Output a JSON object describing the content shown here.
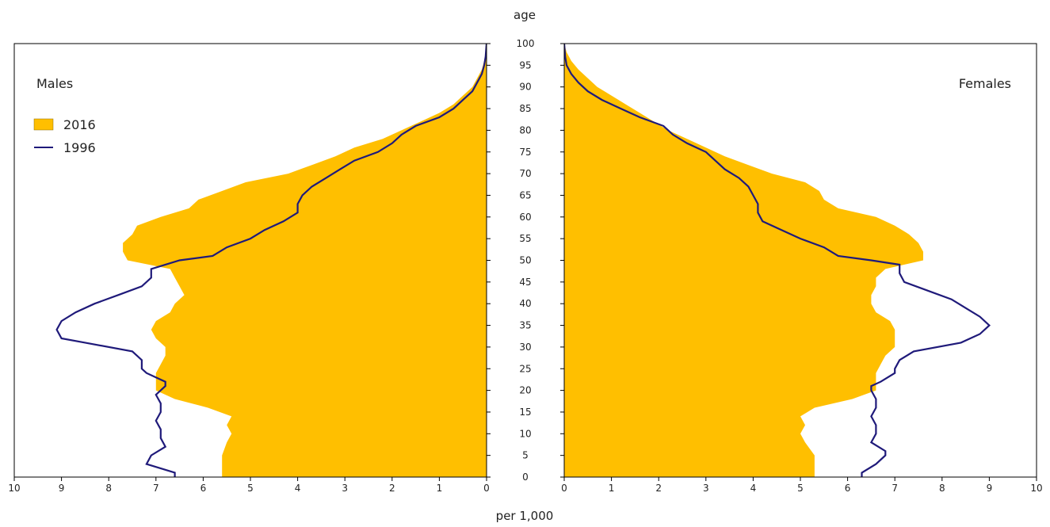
{
  "chart_data": {
    "type": "population-pyramid",
    "y_axis_title": "age",
    "x_axis_title": "per 1,000",
    "panels": [
      {
        "name": "Males",
        "side": "left"
      },
      {
        "name": "Females",
        "side": "right"
      }
    ],
    "x_range": [
      0,
      10
    ],
    "x_ticks": [
      "0",
      "1",
      "2",
      "3",
      "4",
      "5",
      "6",
      "7",
      "8",
      "9",
      "10"
    ],
    "y_range": [
      0,
      100
    ],
    "y_ticks": [
      "0",
      "5",
      "10",
      "15",
      "20",
      "25",
      "30",
      "35",
      "40",
      "45",
      "50",
      "55",
      "60",
      "65",
      "70",
      "75",
      "80",
      "85",
      "90",
      "95",
      "100"
    ],
    "legend": {
      "placement": "top-left",
      "entries": [
        {
          "label": "2016",
          "kind": "area",
          "color": "#FFBF00"
        },
        {
          "label": "1996",
          "kind": "line",
          "color": "#1F1A7A"
        }
      ]
    },
    "series": [
      {
        "name": "2016",
        "kind": "area",
        "color": "#FFBF00",
        "males": [
          [
            0,
            5.6
          ],
          [
            2,
            5.6
          ],
          [
            5,
            5.6
          ],
          [
            8,
            5.5
          ],
          [
            10,
            5.4
          ],
          [
            12,
            5.5
          ],
          [
            14,
            5.4
          ],
          [
            16,
            5.9
          ],
          [
            18,
            6.6
          ],
          [
            20,
            7.0
          ],
          [
            22,
            7.0
          ],
          [
            24,
            7.0
          ],
          [
            26,
            6.9
          ],
          [
            28,
            6.8
          ],
          [
            30,
            6.8
          ],
          [
            32,
            7.0
          ],
          [
            34,
            7.1
          ],
          [
            36,
            7.0
          ],
          [
            38,
            6.7
          ],
          [
            40,
            6.6
          ],
          [
            42,
            6.4
          ],
          [
            44,
            6.5
          ],
          [
            46,
            6.6
          ],
          [
            48,
            6.7
          ],
          [
            50,
            7.6
          ],
          [
            52,
            7.7
          ],
          [
            54,
            7.7
          ],
          [
            56,
            7.5
          ],
          [
            58,
            7.4
          ],
          [
            60,
            6.9
          ],
          [
            62,
            6.3
          ],
          [
            64,
            6.1
          ],
          [
            66,
            5.6
          ],
          [
            68,
            5.1
          ],
          [
            70,
            4.2
          ],
          [
            72,
            3.7
          ],
          [
            74,
            3.2
          ],
          [
            76,
            2.8
          ],
          [
            78,
            2.2
          ],
          [
            80,
            1.8
          ],
          [
            82,
            1.4
          ],
          [
            84,
            1.0
          ],
          [
            86,
            0.7
          ],
          [
            88,
            0.5
          ],
          [
            90,
            0.3
          ],
          [
            92,
            0.2
          ],
          [
            94,
            0.1
          ],
          [
            96,
            0.05
          ],
          [
            98,
            0.02
          ],
          [
            100,
            0.0
          ]
        ],
        "females": [
          [
            0,
            5.3
          ],
          [
            2,
            5.3
          ],
          [
            5,
            5.3
          ],
          [
            8,
            5.1
          ],
          [
            10,
            5.0
          ],
          [
            12,
            5.1
          ],
          [
            14,
            5.0
          ],
          [
            16,
            5.3
          ],
          [
            18,
            6.1
          ],
          [
            20,
            6.6
          ],
          [
            22,
            6.6
          ],
          [
            24,
            6.6
          ],
          [
            26,
            6.7
          ],
          [
            28,
            6.8
          ],
          [
            30,
            7.0
          ],
          [
            32,
            7.0
          ],
          [
            34,
            7.0
          ],
          [
            36,
            6.9
          ],
          [
            38,
            6.6
          ],
          [
            40,
            6.5
          ],
          [
            42,
            6.5
          ],
          [
            44,
            6.6
          ],
          [
            46,
            6.6
          ],
          [
            48,
            6.8
          ],
          [
            50,
            7.6
          ],
          [
            52,
            7.6
          ],
          [
            54,
            7.5
          ],
          [
            56,
            7.3
          ],
          [
            58,
            7.0
          ],
          [
            60,
            6.6
          ],
          [
            62,
            5.8
          ],
          [
            64,
            5.5
          ],
          [
            66,
            5.4
          ],
          [
            68,
            5.1
          ],
          [
            70,
            4.4
          ],
          [
            72,
            3.9
          ],
          [
            74,
            3.4
          ],
          [
            76,
            3.0
          ],
          [
            78,
            2.6
          ],
          [
            80,
            2.2
          ],
          [
            82,
            1.9
          ],
          [
            84,
            1.6
          ],
          [
            86,
            1.3
          ],
          [
            88,
            1.0
          ],
          [
            90,
            0.7
          ],
          [
            92,
            0.5
          ],
          [
            94,
            0.3
          ],
          [
            96,
            0.15
          ],
          [
            98,
            0.05
          ],
          [
            100,
            0.0
          ]
        ]
      },
      {
        "name": "1996",
        "kind": "line",
        "color": "#1F1A7A",
        "males": [
          [
            0,
            6.6
          ],
          [
            1,
            6.6
          ],
          [
            3,
            7.2
          ],
          [
            5,
            7.1
          ],
          [
            7,
            6.8
          ],
          [
            9,
            6.9
          ],
          [
            11,
            6.9
          ],
          [
            13,
            7.0
          ],
          [
            15,
            6.9
          ],
          [
            17,
            6.9
          ],
          [
            19,
            7.0
          ],
          [
            20,
            6.9
          ],
          [
            21,
            6.8
          ],
          [
            22,
            6.8
          ],
          [
            23,
            7.0
          ],
          [
            24,
            7.2
          ],
          [
            25,
            7.3
          ],
          [
            27,
            7.3
          ],
          [
            29,
            7.5
          ],
          [
            31,
            8.5
          ],
          [
            32,
            9.0
          ],
          [
            34,
            9.1
          ],
          [
            36,
            9.0
          ],
          [
            38,
            8.7
          ],
          [
            40,
            8.3
          ],
          [
            42,
            7.8
          ],
          [
            44,
            7.3
          ],
          [
            46,
            7.1
          ],
          [
            48,
            7.1
          ],
          [
            50,
            6.5
          ],
          [
            51,
            5.8
          ],
          [
            53,
            5.5
          ],
          [
            55,
            5.0
          ],
          [
            57,
            4.7
          ],
          [
            59,
            4.3
          ],
          [
            61,
            4.0
          ],
          [
            63,
            4.0
          ],
          [
            65,
            3.9
          ],
          [
            67,
            3.7
          ],
          [
            69,
            3.4
          ],
          [
            71,
            3.1
          ],
          [
            73,
            2.8
          ],
          [
            75,
            2.3
          ],
          [
            77,
            2.0
          ],
          [
            79,
            1.8
          ],
          [
            81,
            1.5
          ],
          [
            83,
            1.0
          ],
          [
            85,
            0.7
          ],
          [
            87,
            0.5
          ],
          [
            89,
            0.3
          ],
          [
            91,
            0.2
          ],
          [
            93,
            0.1
          ],
          [
            95,
            0.05
          ],
          [
            97,
            0.02
          ],
          [
            100,
            0.0
          ]
        ],
        "females": [
          [
            0,
            6.3
          ],
          [
            1,
            6.3
          ],
          [
            3,
            6.6
          ],
          [
            5,
            6.8
          ],
          [
            6,
            6.8
          ],
          [
            8,
            6.5
          ],
          [
            10,
            6.6
          ],
          [
            12,
            6.6
          ],
          [
            14,
            6.5
          ],
          [
            16,
            6.6
          ],
          [
            18,
            6.6
          ],
          [
            20,
            6.5
          ],
          [
            21,
            6.5
          ],
          [
            22,
            6.7
          ],
          [
            24,
            7.0
          ],
          [
            25,
            7.0
          ],
          [
            27,
            7.1
          ],
          [
            29,
            7.4
          ],
          [
            31,
            8.4
          ],
          [
            33,
            8.8
          ],
          [
            35,
            9.0
          ],
          [
            37,
            8.8
          ],
          [
            39,
            8.5
          ],
          [
            41,
            8.2
          ],
          [
            43,
            7.7
          ],
          [
            45,
            7.2
          ],
          [
            47,
            7.1
          ],
          [
            49,
            7.1
          ],
          [
            50,
            6.5
          ],
          [
            51,
            5.8
          ],
          [
            53,
            5.5
          ],
          [
            55,
            5.0
          ],
          [
            57,
            4.6
          ],
          [
            59,
            4.2
          ],
          [
            61,
            4.1
          ],
          [
            63,
            4.1
          ],
          [
            65,
            4.0
          ],
          [
            67,
            3.9
          ],
          [
            69,
            3.7
          ],
          [
            71,
            3.4
          ],
          [
            73,
            3.2
          ],
          [
            75,
            3.0
          ],
          [
            77,
            2.6
          ],
          [
            79,
            2.3
          ],
          [
            81,
            2.1
          ],
          [
            83,
            1.6
          ],
          [
            85,
            1.2
          ],
          [
            87,
            0.8
          ],
          [
            89,
            0.5
          ],
          [
            91,
            0.3
          ],
          [
            93,
            0.15
          ],
          [
            95,
            0.05
          ],
          [
            97,
            0.02
          ],
          [
            100,
            0.0
          ]
        ]
      }
    ]
  }
}
